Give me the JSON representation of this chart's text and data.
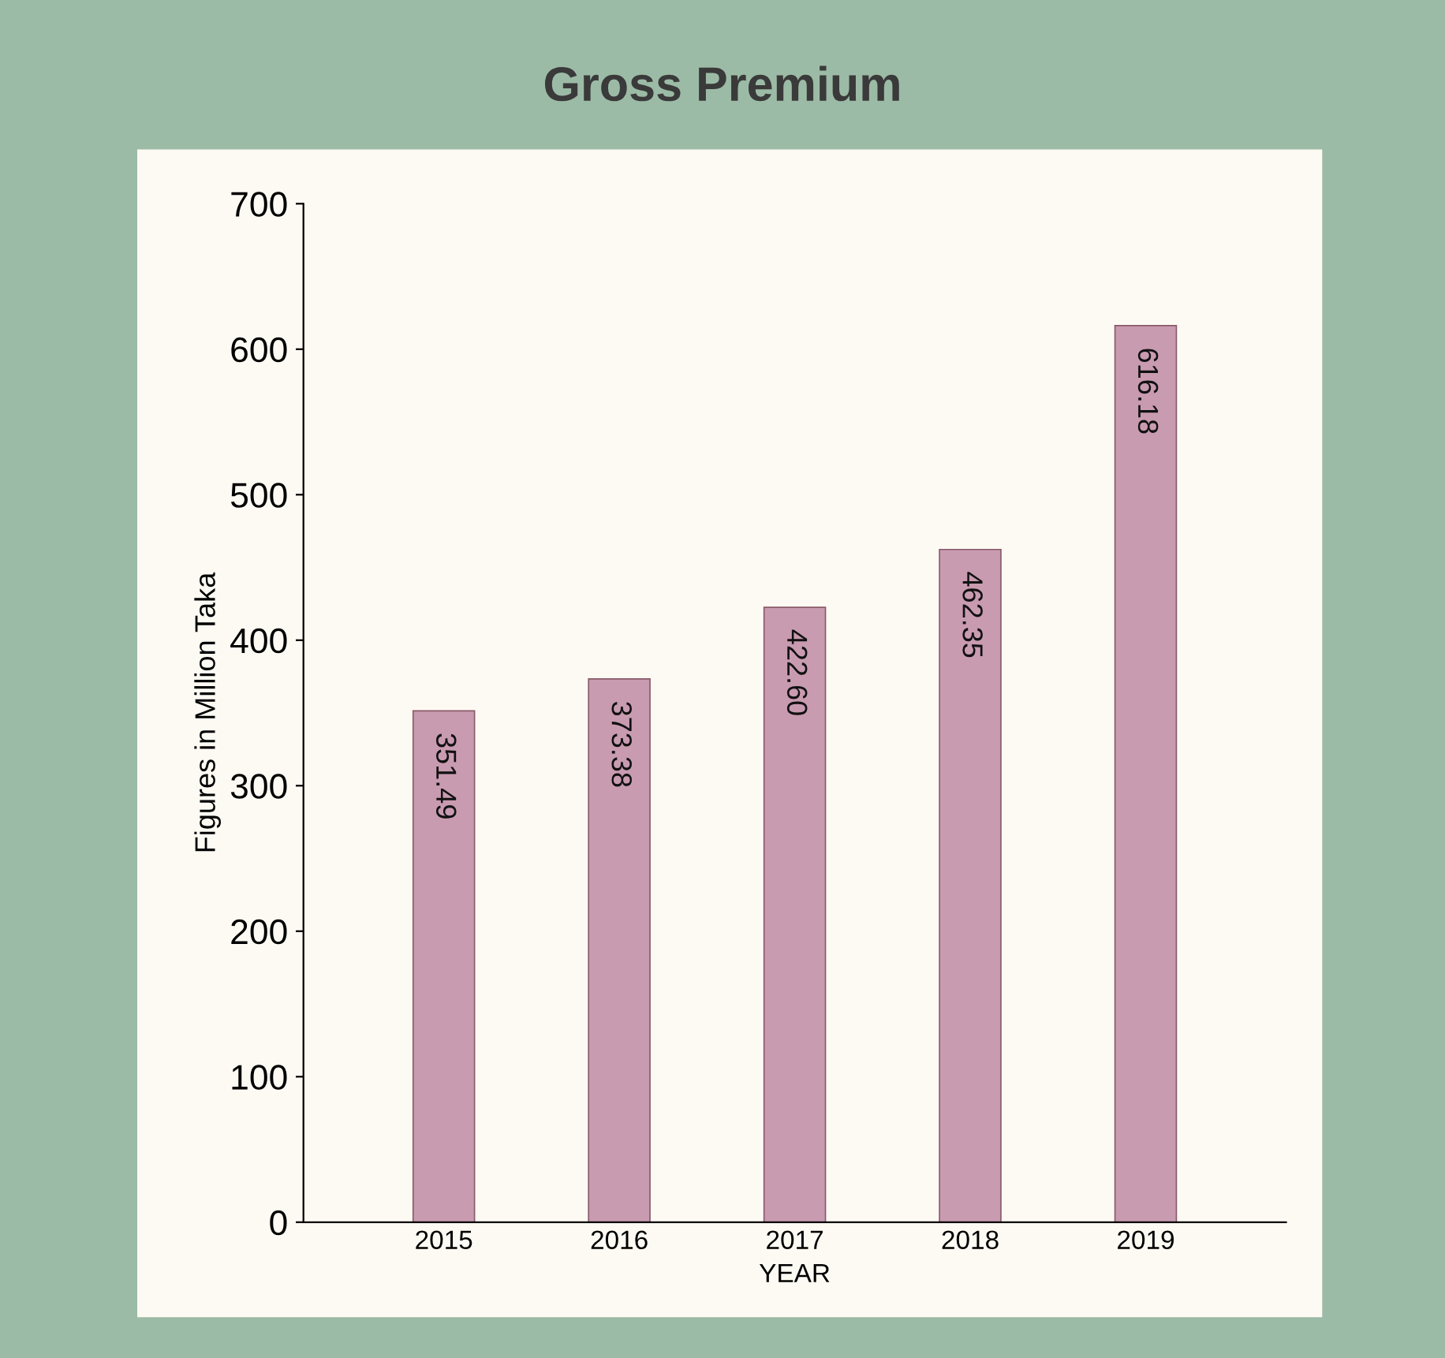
{
  "chart_data": {
    "type": "bar",
    "title": "Gross Premium",
    "xlabel": "YEAR",
    "ylabel": "Figures in Million Taka",
    "categories": [
      "2015",
      "2016",
      "2017",
      "2018",
      "2019"
    ],
    "values": [
      351.49,
      373.38,
      422.6,
      462.35,
      616.18
    ],
    "value_labels": [
      "351.49",
      "373.38",
      "422.60",
      "462.35",
      "616.18"
    ],
    "color": "#c99bb0",
    "ylim": [
      0,
      700
    ],
    "yticks": [
      0,
      100,
      200,
      300,
      400,
      500,
      600,
      700
    ],
    "grid": false
  }
}
